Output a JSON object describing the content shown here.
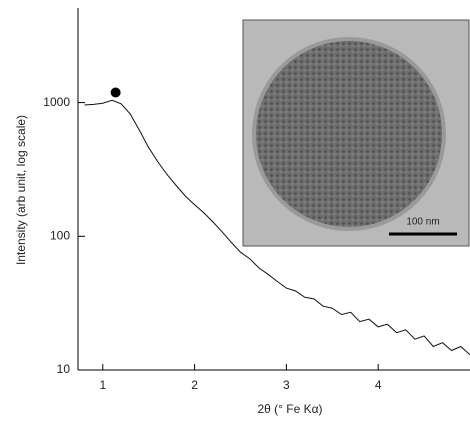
{
  "chart_data": {
    "type": "line",
    "x_label": "2θ (° Fe Kα)",
    "y_label": "Intensity (arb unit, log scale)",
    "x": [
      0.8,
      0.9,
      1.0,
      1.1,
      1.2,
      1.3,
      1.4,
      1.5,
      1.6,
      1.7,
      1.8,
      1.9,
      2.0,
      2.1,
      2.2,
      2.3,
      2.4,
      2.5,
      2.6,
      2.7,
      2.8,
      2.9,
      3.0,
      3.1,
      3.2,
      3.3,
      3.4,
      3.5,
      3.6,
      3.7,
      3.8,
      3.9,
      4.0,
      4.1,
      4.2,
      4.3,
      4.4,
      4.5,
      4.6,
      4.7,
      4.8,
      4.9,
      5.0
    ],
    "values": [
      960,
      970,
      990,
      1040,
      980,
      820,
      620,
      460,
      360,
      290,
      240,
      200,
      172,
      150,
      128,
      108,
      90,
      76,
      68,
      58,
      52,
      46,
      41,
      39,
      35,
      34,
      30,
      29,
      26,
      27,
      23,
      24,
      21,
      22,
      19,
      20,
      17,
      18,
      15,
      16,
      14,
      15,
      13
    ],
    "color": "#111111",
    "xlim": [
      0.73,
      5.0
    ],
    "ylim": [
      10,
      5100
    ],
    "y_scale": "log",
    "xticks": [
      1,
      2,
      3,
      4
    ],
    "yticks": [
      10,
      100,
      1000
    ],
    "peak_marker": {
      "x": 1.14,
      "y": 1190
    },
    "inset_scale_label": "100 nm"
  }
}
